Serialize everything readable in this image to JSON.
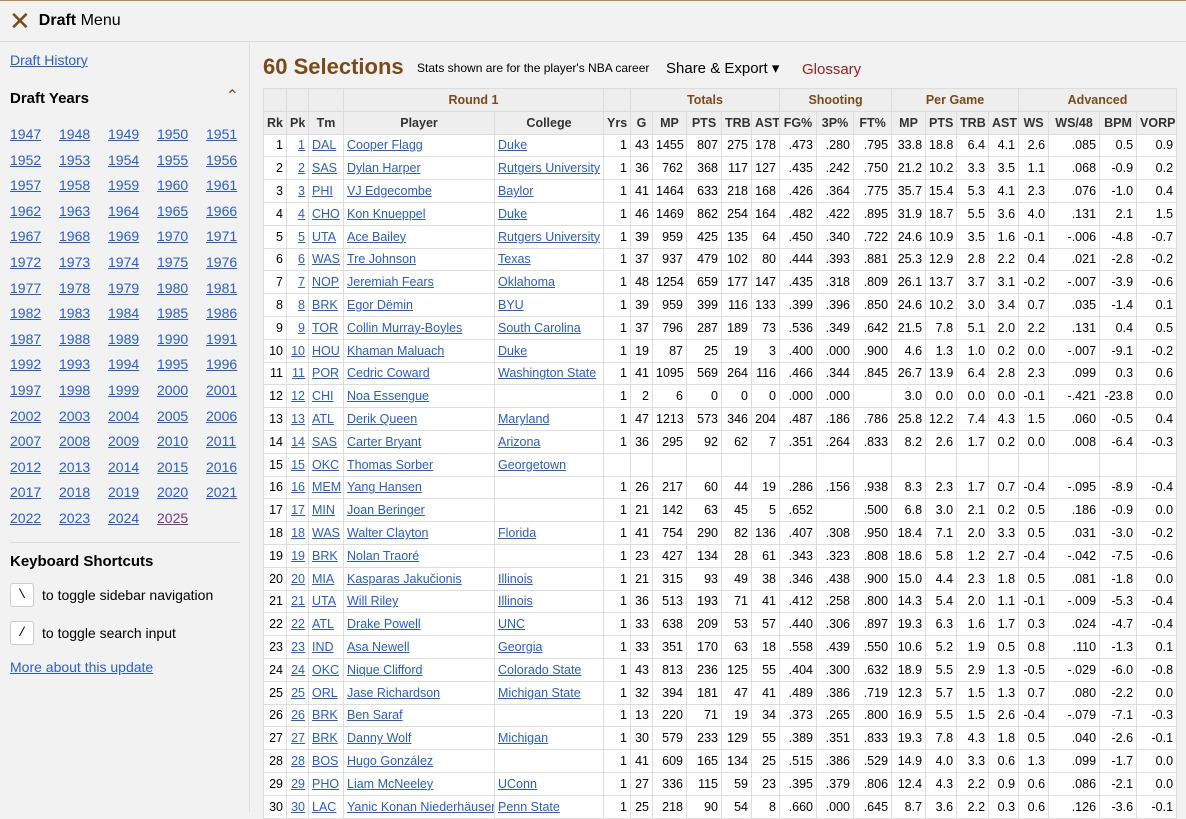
{
  "header": {
    "title_bold": "Draft",
    "title_rest": "Menu"
  },
  "sidebar": {
    "history_link": "Draft History",
    "years_title": "Draft Years",
    "years": [
      "1947",
      "1948",
      "1949",
      "1950",
      "1951",
      "1952",
      "1953",
      "1954",
      "1955",
      "1956",
      "1957",
      "1958",
      "1959",
      "1960",
      "1961",
      "1962",
      "1963",
      "1964",
      "1965",
      "1966",
      "1967",
      "1968",
      "1969",
      "1970",
      "1971",
      "1972",
      "1973",
      "1974",
      "1975",
      "1976",
      "1977",
      "1978",
      "1979",
      "1980",
      "1981",
      "1982",
      "1983",
      "1984",
      "1985",
      "1986",
      "1987",
      "1988",
      "1989",
      "1990",
      "1991",
      "1992",
      "1993",
      "1994",
      "1995",
      "1996",
      "1997",
      "1998",
      "1999",
      "2000",
      "2001",
      "2002",
      "2003",
      "2004",
      "2005",
      "2006",
      "2007",
      "2008",
      "2009",
      "2010",
      "2011",
      "2012",
      "2013",
      "2014",
      "2015",
      "2016",
      "2017",
      "2018",
      "2019",
      "2020",
      "2021",
      "2022",
      "2023",
      "2024",
      "2025"
    ],
    "shortcuts_title": "Keyboard Shortcuts",
    "shortcuts": [
      {
        "key": "\\",
        "text": "to toggle sidebar navigation"
      },
      {
        "key": "/",
        "text": "to toggle search input"
      }
    ],
    "more_link": "More about this update"
  },
  "main": {
    "title": "60 Selections",
    "note": "Stats shown are for the player's NBA career",
    "share": "Share & Export ▾",
    "glossary": "Glossary"
  },
  "table": {
    "groups": [
      {
        "label": "Round 1",
        "span": [
          3,
          4
        ]
      },
      {
        "label": "Totals",
        "span": [
          6,
          10
        ]
      },
      {
        "label": "Shooting",
        "span": [
          11,
          13
        ]
      },
      {
        "label": "Per Game",
        "span": [
          14,
          17
        ]
      },
      {
        "label": "Advanced",
        "span": [
          18,
          21
        ]
      }
    ],
    "columns": [
      "Rk",
      "Pk",
      "Tm",
      "Player",
      "College",
      "Yrs",
      "G",
      "MP",
      "PTS",
      "TRB",
      "AST",
      "FG%",
      "3P%",
      "FT%",
      "MP",
      "PTS",
      "TRB",
      "AST",
      "WS",
      "WS/48",
      "BPM",
      "VORP"
    ],
    "rows": [
      [
        "1",
        "1",
        "DAL",
        "Cooper Flagg",
        "Duke",
        "1",
        "43",
        "1455",
        "807",
        "275",
        "178",
        ".473",
        ".280",
        ".795",
        "33.8",
        "18.8",
        "6.4",
        "4.1",
        "2.6",
        ".085",
        "0.5",
        "0.9"
      ],
      [
        "2",
        "2",
        "SAS",
        "Dylan Harper",
        "Rutgers University",
        "1",
        "36",
        "762",
        "368",
        "117",
        "127",
        ".435",
        ".242",
        ".750",
        "21.2",
        "10.2",
        "3.3",
        "3.5",
        "1.1",
        ".068",
        "-0.9",
        "0.2"
      ],
      [
        "3",
        "3",
        "PHI",
        "VJ Edgecombe",
        "Baylor",
        "1",
        "41",
        "1464",
        "633",
        "218",
        "168",
        ".426",
        ".364",
        ".775",
        "35.7",
        "15.4",
        "5.3",
        "4.1",
        "2.3",
        ".076",
        "-1.0",
        "0.4"
      ],
      [
        "4",
        "4",
        "CHO",
        "Kon Knueppel",
        "Duke",
        "1",
        "46",
        "1469",
        "862",
        "254",
        "164",
        ".482",
        ".422",
        ".895",
        "31.9",
        "18.7",
        "5.5",
        "3.6",
        "4.0",
        ".131",
        "2.1",
        "1.5"
      ],
      [
        "5",
        "5",
        "UTA",
        "Ace Bailey",
        "Rutgers University",
        "1",
        "39",
        "959",
        "425",
        "135",
        "64",
        ".450",
        ".340",
        ".722",
        "24.6",
        "10.9",
        "3.5",
        "1.6",
        "-0.1",
        "-.006",
        "-4.8",
        "-0.7"
      ],
      [
        "6",
        "6",
        "WAS",
        "Tre Johnson",
        "Texas",
        "1",
        "37",
        "937",
        "479",
        "102",
        "80",
        ".444",
        ".393",
        ".881",
        "25.3",
        "12.9",
        "2.8",
        "2.2",
        "0.4",
        ".021",
        "-2.8",
        "-0.2"
      ],
      [
        "7",
        "7",
        "NOP",
        "Jeremiah Fears",
        "Oklahoma",
        "1",
        "48",
        "1254",
        "659",
        "177",
        "147",
        ".435",
        ".318",
        ".809",
        "26.1",
        "13.7",
        "3.7",
        "3.1",
        "-0.2",
        "-.007",
        "-3.9",
        "-0.6"
      ],
      [
        "8",
        "8",
        "BRK",
        "Egor Dëmin",
        "BYU",
        "1",
        "39",
        "959",
        "399",
        "116",
        "133",
        ".399",
        ".396",
        ".850",
        "24.6",
        "10.2",
        "3.0",
        "3.4",
        "0.7",
        ".035",
        "-1.4",
        "0.1"
      ],
      [
        "9",
        "9",
        "TOR",
        "Collin Murray-Boyles",
        "South Carolina",
        "1",
        "37",
        "796",
        "287",
        "189",
        "73",
        ".536",
        ".349",
        ".642",
        "21.5",
        "7.8",
        "5.1",
        "2.0",
        "2.2",
        ".131",
        "0.4",
        "0.5"
      ],
      [
        "10",
        "10",
        "HOU",
        "Khaman Maluach",
        "Duke",
        "1",
        "19",
        "87",
        "25",
        "19",
        "3",
        ".400",
        ".000",
        ".900",
        "4.6",
        "1.3",
        "1.0",
        "0.2",
        "0.0",
        "-.007",
        "-9.1",
        "-0.2"
      ],
      [
        "11",
        "11",
        "POR",
        "Cedric Coward",
        "Washington State",
        "1",
        "41",
        "1095",
        "569",
        "264",
        "116",
        ".466",
        ".344",
        ".845",
        "26.7",
        "13.9",
        "6.4",
        "2.8",
        "2.3",
        ".099",
        "0.3",
        "0.6"
      ],
      [
        "12",
        "12",
        "CHI",
        "Noa Essengue",
        null,
        "1",
        "2",
        "6",
        "0",
        "0",
        "0",
        ".000",
        ".000",
        null,
        "3.0",
        "0.0",
        "0.0",
        "0.0",
        "-0.1",
        "-.421",
        "-23.8",
        "0.0"
      ],
      [
        "13",
        "13",
        "ATL",
        "Derik Queen",
        "Maryland",
        "1",
        "47",
        "1213",
        "573",
        "346",
        "204",
        ".487",
        ".186",
        ".786",
        "25.8",
        "12.2",
        "7.4",
        "4.3",
        "1.5",
        ".060",
        "-0.5",
        "0.4"
      ],
      [
        "14",
        "14",
        "SAS",
        "Carter Bryant",
        "Arizona",
        "1",
        "36",
        "295",
        "92",
        "62",
        "7",
        ".351",
        ".264",
        ".833",
        "8.2",
        "2.6",
        "1.7",
        "0.2",
        "0.0",
        ".008",
        "-6.4",
        "-0.3"
      ],
      [
        "15",
        "15",
        "OKC",
        "Thomas Sorber",
        "Georgetown",
        null,
        null,
        null,
        null,
        null,
        null,
        null,
        null,
        null,
        null,
        null,
        null,
        null,
        null,
        null,
        null,
        null
      ],
      [
        "16",
        "16",
        "MEM",
        "Yang Hansen",
        null,
        "1",
        "26",
        "217",
        "60",
        "44",
        "19",
        ".286",
        ".156",
        ".938",
        "8.3",
        "2.3",
        "1.7",
        "0.7",
        "-0.4",
        "-.095",
        "-8.9",
        "-0.4"
      ],
      [
        "17",
        "17",
        "MIN",
        "Joan Beringer",
        null,
        "1",
        "21",
        "142",
        "63",
        "45",
        "5",
        ".652",
        null,
        ".500",
        "6.8",
        "3.0",
        "2.1",
        "0.2",
        "0.5",
        ".186",
        "-0.9",
        "0.0"
      ],
      [
        "18",
        "18",
        "WAS",
        "Walter Clayton",
        "Florida",
        "1",
        "41",
        "754",
        "290",
        "82",
        "136",
        ".407",
        ".308",
        ".950",
        "18.4",
        "7.1",
        "2.0",
        "3.3",
        "0.5",
        ".031",
        "-3.0",
        "-0.2"
      ],
      [
        "19",
        "19",
        "BRK",
        "Nolan Traoré",
        null,
        "1",
        "23",
        "427",
        "134",
        "28",
        "61",
        ".343",
        ".323",
        ".808",
        "18.6",
        "5.8",
        "1.2",
        "2.7",
        "-0.4",
        "-.042",
        "-7.5",
        "-0.6"
      ],
      [
        "20",
        "20",
        "MIA",
        "Kasparas Jakučionis",
        "Illinois",
        "1",
        "21",
        "315",
        "93",
        "49",
        "38",
        ".346",
        ".438",
        ".900",
        "15.0",
        "4.4",
        "2.3",
        "1.8",
        "0.5",
        ".081",
        "-1.8",
        "0.0"
      ],
      [
        "21",
        "21",
        "UTA",
        "Will Riley",
        "Illinois",
        "1",
        "36",
        "513",
        "193",
        "71",
        "41",
        ".412",
        ".258",
        ".800",
        "14.3",
        "5.4",
        "2.0",
        "1.1",
        "-0.1",
        "-.009",
        "-5.3",
        "-0.4"
      ],
      [
        "22",
        "22",
        "ATL",
        "Drake Powell",
        "UNC",
        "1",
        "33",
        "638",
        "209",
        "53",
        "57",
        ".440",
        ".306",
        ".897",
        "19.3",
        "6.3",
        "1.6",
        "1.7",
        "0.3",
        ".024",
        "-4.7",
        "-0.4"
      ],
      [
        "23",
        "23",
        "IND",
        "Asa Newell",
        "Georgia",
        "1",
        "33",
        "351",
        "170",
        "63",
        "18",
        ".558",
        ".439",
        ".550",
        "10.6",
        "5.2",
        "1.9",
        "0.5",
        "0.8",
        ".110",
        "-1.3",
        "0.1"
      ],
      [
        "24",
        "24",
        "OKC",
        "Nique Clifford",
        "Colorado State",
        "1",
        "43",
        "813",
        "236",
        "125",
        "55",
        ".404",
        ".300",
        ".632",
        "18.9",
        "5.5",
        "2.9",
        "1.3",
        "-0.5",
        "-.029",
        "-6.0",
        "-0.8"
      ],
      [
        "25",
        "25",
        "ORL",
        "Jase Richardson",
        "Michigan State",
        "1",
        "32",
        "394",
        "181",
        "47",
        "41",
        ".489",
        ".386",
        ".719",
        "12.3",
        "5.7",
        "1.5",
        "1.3",
        "0.7",
        ".080",
        "-2.2",
        "0.0"
      ],
      [
        "26",
        "26",
        "BRK",
        "Ben Saraf",
        null,
        "1",
        "13",
        "220",
        "71",
        "19",
        "34",
        ".373",
        ".265",
        ".800",
        "16.9",
        "5.5",
        "1.5",
        "2.6",
        "-0.4",
        "-.079",
        "-7.1",
        "-0.3"
      ],
      [
        "27",
        "27",
        "BRK",
        "Danny Wolf",
        "Michigan",
        "1",
        "30",
        "579",
        "233",
        "129",
        "55",
        ".389",
        ".351",
        ".833",
        "19.3",
        "7.8",
        "4.3",
        "1.8",
        "0.5",
        ".040",
        "-2.6",
        "-0.1"
      ],
      [
        "28",
        "28",
        "BOS",
        "Hugo González",
        null,
        "1",
        "41",
        "609",
        "165",
        "134",
        "25",
        ".515",
        ".386",
        ".529",
        "14.9",
        "4.0",
        "3.3",
        "0.6",
        "1.3",
        ".099",
        "-1.7",
        "0.0"
      ],
      [
        "29",
        "29",
        "PHO",
        "Liam McNeeley",
        "UConn",
        "1",
        "27",
        "336",
        "115",
        "59",
        "23",
        ".395",
        ".379",
        ".806",
        "12.4",
        "4.3",
        "2.2",
        "0.9",
        "0.6",
        ".086",
        "-2.1",
        "0.0"
      ],
      [
        "30",
        "30",
        "LAC",
        "Yanic Konan Niederhäuser",
        "Penn State",
        "1",
        "25",
        "218",
        "90",
        "54",
        "8",
        ".660",
        ".000",
        ".645",
        "8.7",
        "3.6",
        "2.2",
        "0.3",
        "0.6",
        ".126",
        "-3.6",
        "-0.1"
      ]
    ]
  }
}
